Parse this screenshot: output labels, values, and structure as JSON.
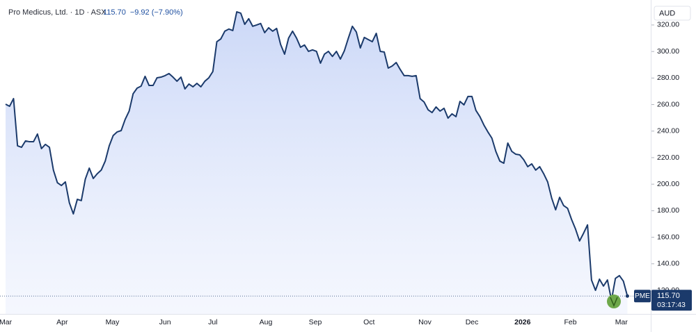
{
  "chart_data": {
    "type": "area",
    "header": {
      "name": "Pro Medicus, Ltd. · 1D · ASX",
      "last": "115.70",
      "change": "−9.92 (−7.90%)"
    },
    "currency": "AUD",
    "price_label": {
      "symbol": "PME",
      "value": 115.7,
      "label": "115.70",
      "countdown": "03:17:43"
    },
    "series": [
      {
        "name": "PME",
        "color": "#1b3a6b",
        "values": [
          260.3,
          258.7,
          264.5,
          228.9,
          227.8,
          232.6,
          232.0,
          232.0,
          237.8,
          226.8,
          230.0,
          227.8,
          210.6,
          201.1,
          199.0,
          201.7,
          186.0,
          177.6,
          188.6,
          187.6,
          203.8,
          212.1,
          204.3,
          207.9,
          210.6,
          217.4,
          228.9,
          236.7,
          239.4,
          240.4,
          248.8,
          255.1,
          268.2,
          272.4,
          273.9,
          281.3,
          274.4,
          274.4,
          280.2,
          280.7,
          281.8,
          283.4,
          280.7,
          277.6,
          280.7,
          271.8,
          275.5,
          273.4,
          276.0,
          273.4,
          277.6,
          280.2,
          284.9,
          307.4,
          309.5,
          315.3,
          316.9,
          315.8,
          329.9,
          328.9,
          320.5,
          324.7,
          319.0,
          320.0,
          321.1,
          314.2,
          317.9,
          315.3,
          317.4,
          305.3,
          298.0,
          310.1,
          315.3,
          310.1,
          303.2,
          304.9,
          300.1,
          301.2,
          300.1,
          291.2,
          298.0,
          300.1,
          296.3,
          300.1,
          294.3,
          300.6,
          310.1,
          319.0,
          314.7,
          302.7,
          310.6,
          309.0,
          307.4,
          313.7,
          300.1,
          299.6,
          287.5,
          289.1,
          291.7,
          286.5,
          281.8,
          281.8,
          281.3,
          281.8,
          264.5,
          261.9,
          256.1,
          254.0,
          258.2,
          255.1,
          257.2,
          249.8,
          253.0,
          250.9,
          262.4,
          259.8,
          266.1,
          266.1,
          255.6,
          250.9,
          244.6,
          239.4,
          234.7,
          224.7,
          217.4,
          215.8,
          231.0,
          224.7,
          222.6,
          222.1,
          218.4,
          213.2,
          215.3,
          210.6,
          213.2,
          207.9,
          201.7,
          189.6,
          180.7,
          190.1,
          183.9,
          181.8,
          173.4,
          166.1,
          157.2,
          163.0,
          169.3,
          127.8,
          120.0,
          128.4,
          123.2,
          127.8,
          112.6,
          129.0,
          131.1,
          126.9,
          115.7
        ]
      }
    ],
    "xlim": [
      -1.4,
      157.5
    ],
    "xticks": [
      {
        "value": 0,
        "label": "Mar"
      },
      {
        "value": 14.2,
        "label": "Apr"
      },
      {
        "value": 26.8,
        "label": "May"
      },
      {
        "value": 40,
        "label": "Jun"
      },
      {
        "value": 52,
        "label": "Jul"
      },
      {
        "value": 65.3,
        "label": "Aug"
      },
      {
        "value": 77.7,
        "label": "Sep"
      },
      {
        "value": 91.2,
        "label": "Oct"
      },
      {
        "value": 105.2,
        "label": "Nov"
      },
      {
        "value": 117,
        "label": "Dec"
      },
      {
        "value": 129.7,
        "label": "2026"
      },
      {
        "value": 141.7,
        "label": "Feb"
      },
      {
        "value": 154.5,
        "label": "Mar"
      }
    ],
    "ylim": [
      102.2,
      336.2
    ],
    "yticks": [
      {
        "value": 120,
        "label": "120.00"
      },
      {
        "value": 140,
        "label": "140.00"
      },
      {
        "value": 160,
        "label": "160.00"
      },
      {
        "value": 180,
        "label": "180.00"
      },
      {
        "value": 200,
        "label": "200.00"
      },
      {
        "value": 220,
        "label": "220.00"
      },
      {
        "value": 240,
        "label": "240.00"
      },
      {
        "value": 260,
        "label": "260.00"
      },
      {
        "value": 280,
        "label": "280.00"
      },
      {
        "value": 300,
        "label": "300.00"
      },
      {
        "value": 320,
        "label": "320.00"
      }
    ],
    "grid": false
  }
}
